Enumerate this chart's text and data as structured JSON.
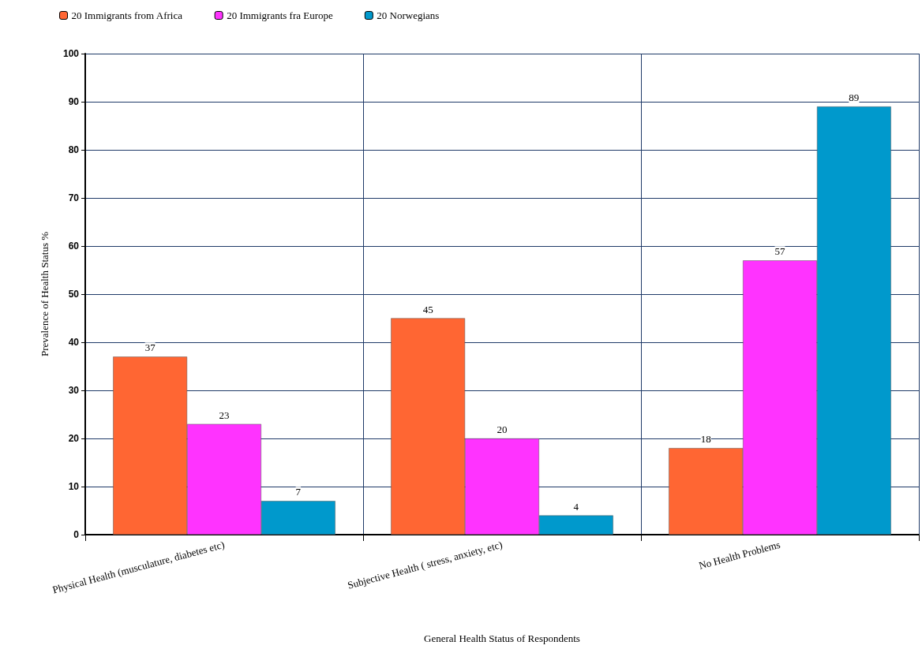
{
  "chart_data": {
    "type": "bar",
    "xlabel": "General Health Status of Respondents",
    "ylabel": "Prevalence of Health Status %",
    "categories": [
      "Physical Health (musculature, diabetes etc)",
      "Subjective Health ( stress, anxiety, etc)",
      "No Health Problems"
    ],
    "series": [
      {
        "name": "20 Immigrants from Africa",
        "color": "#ff6633",
        "values": [
          37,
          45,
          18
        ]
      },
      {
        "name": "20 Immigrants fra Europe",
        "color": "#ff33ff",
        "values": [
          23,
          20,
          57
        ]
      },
      {
        "name": "20 Norwegians",
        "color": "#0099cc",
        "values": [
          7,
          4,
          89
        ]
      }
    ],
    "ylim": [
      0,
      100
    ],
    "yticks": [
      0,
      10,
      20,
      30,
      40,
      50,
      60,
      70,
      80,
      90,
      100
    ],
    "grid": true,
    "legend": "top left",
    "data_labels": true
  }
}
